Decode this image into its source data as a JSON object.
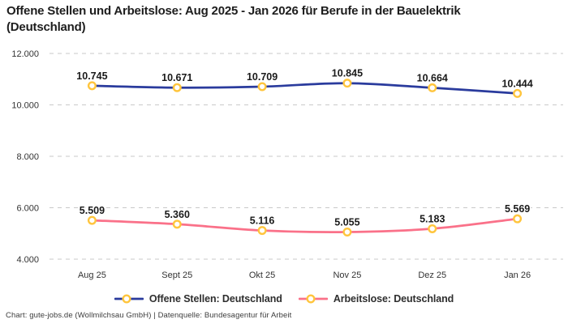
{
  "title": {
    "lines": [
      "Offene Stellen und Arbeitslose: Aug 2025 - Jan 2026 für Berufe in der Bauelektrik",
      "(Deutschland)"
    ]
  },
  "footer": {
    "text": "Chart: gute-jobs.de (Wollmilchsau GmbH) | Datenquelle: Bundesagentur für Arbeit"
  },
  "colors": {
    "series_offene_stellen": "#2a3b9d",
    "series_arbeitslose": "#fa7189",
    "marker_ring": "#ffc53d",
    "marker_fill": "#ffffff",
    "grid": "#c9c9c9",
    "axis_text": "#333333",
    "data_label_text": "#1a1a1a"
  },
  "chart_data": {
    "type": "line",
    "title": "Offene Stellen und Arbeitslose: Aug 2025 - Jan 2026 für Berufe in der Bauelektrik (Deutschland)",
    "xlabel": "",
    "ylabel": "",
    "categories": [
      "Aug 25",
      "Sept 25",
      "Okt 25",
      "Nov 25",
      "Dez 25",
      "Jan 26"
    ],
    "series": [
      {
        "name": "Offene Stellen: Deutschland",
        "color": "#2a3b9d",
        "values": [
          10745,
          10671,
          10709,
          10845,
          10664,
          10444
        ],
        "point_labels": [
          "10.745",
          "10.671",
          "10.709",
          "10.845",
          "10.664",
          "10.444"
        ]
      },
      {
        "name": "Arbeitslose: Deutschland",
        "color": "#fa7189",
        "values": [
          5509,
          5360,
          5116,
          5055,
          5183,
          5569
        ],
        "point_labels": [
          "5.509",
          "5.360",
          "5.116",
          "5.055",
          "5.183",
          "5.569"
        ]
      }
    ],
    "y_axis": {
      "range": [
        4000,
        12000
      ],
      "ticks": [
        {
          "value": 12000,
          "label": "12.000"
        },
        {
          "value": 10000,
          "label": "10.000"
        },
        {
          "value": 8000,
          "label": "8.000"
        },
        {
          "value": 6000,
          "label": "6.000"
        },
        {
          "value": 4000,
          "label": "4.000"
        }
      ]
    },
    "marker_color": "#ffc53d",
    "grid": {
      "show": true,
      "style": "dashed",
      "color": "#c9c9c9"
    },
    "legend_position": "bottom"
  }
}
